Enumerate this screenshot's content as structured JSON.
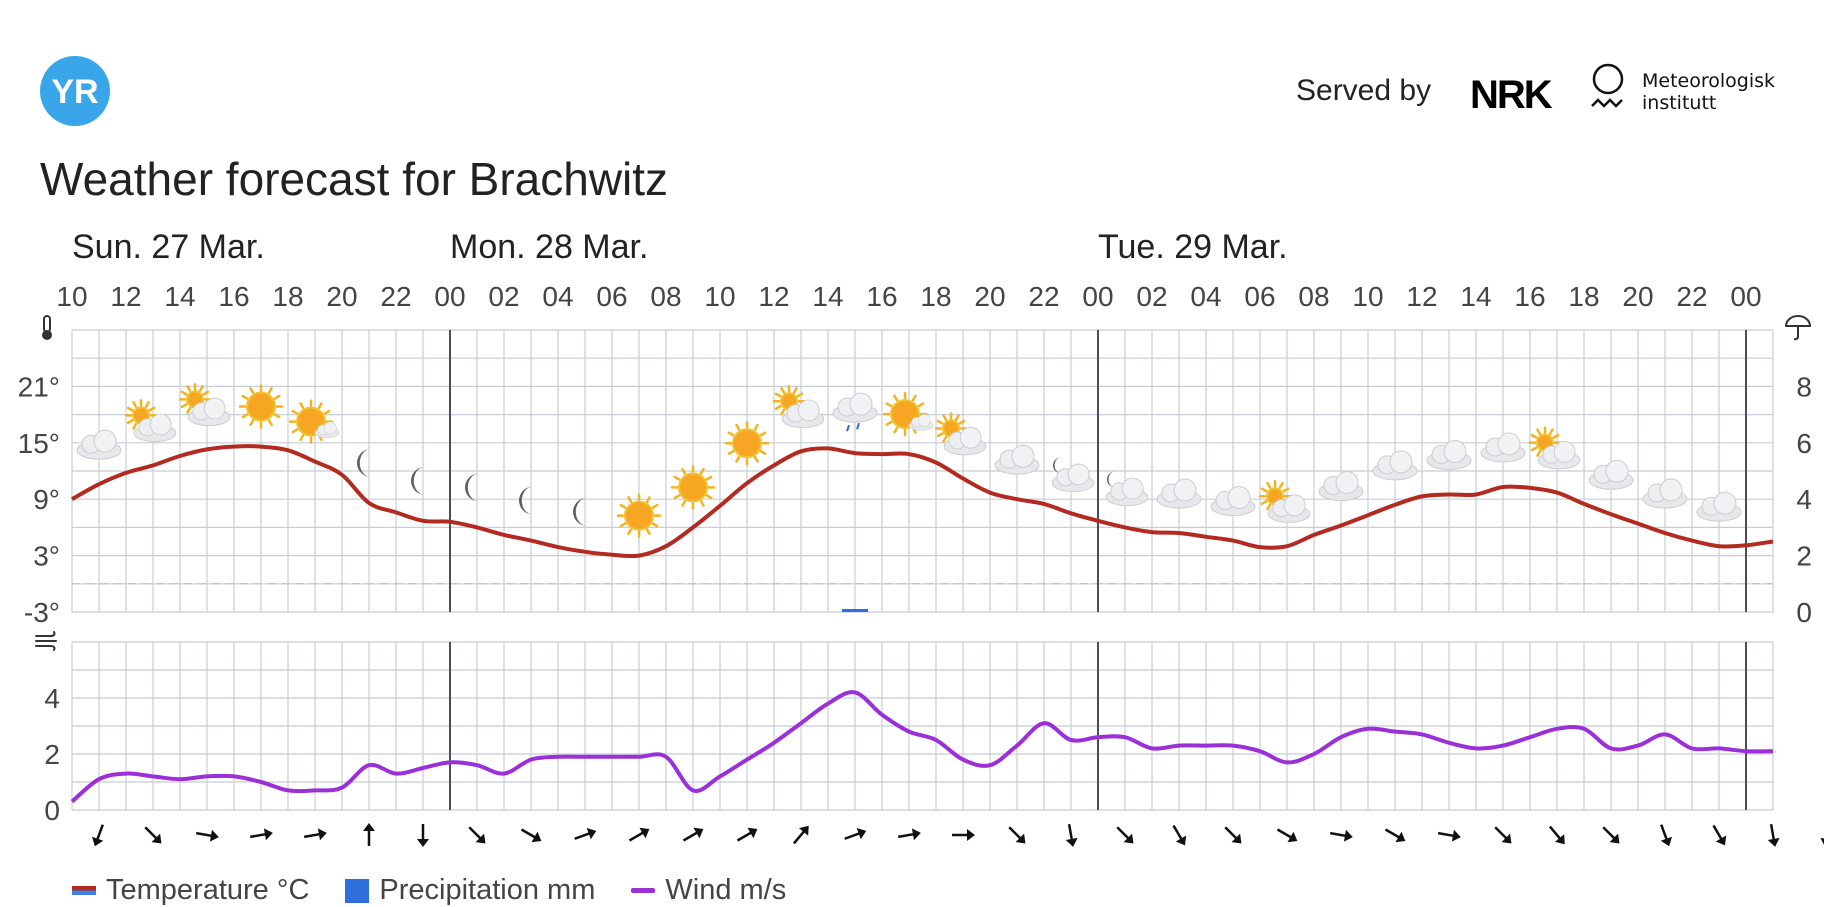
{
  "header": {
    "logo_text": "YR",
    "served_by": "Served by",
    "nrk_logo_text": "NRK",
    "met_institute_line1": "Meteorologisk",
    "met_institute_line2": "institutt"
  },
  "title": "Weather forecast for Brachwitz",
  "colors": {
    "temperature": "#b22a20",
    "temperature_below_zero": "#3f7fe6",
    "precipitation": "#2e6fdc",
    "wind": "#9b2fd8",
    "grid": "#c8ced6",
    "logo_blue": "#38a6e8"
  },
  "legend": {
    "temperature": "Temperature °C",
    "precipitation": "Precipitation mm",
    "wind": "Wind m/s"
  },
  "chart_data": {
    "type": "line",
    "hours": [
      10,
      11,
      12,
      13,
      14,
      15,
      16,
      17,
      18,
      19,
      20,
      21,
      22,
      23,
      0,
      1,
      2,
      3,
      4,
      5,
      6,
      7,
      8,
      9,
      10,
      11,
      12,
      13,
      14,
      15,
      16,
      17,
      18,
      19,
      20,
      21,
      22,
      23,
      0,
      1,
      2,
      3,
      4,
      5,
      6,
      7,
      8,
      9,
      10,
      11,
      12,
      13,
      14,
      15,
      16,
      17,
      18,
      19,
      20,
      21,
      22,
      23,
      0,
      1
    ],
    "x_tick_labels": [
      "10",
      "12",
      "14",
      "16",
      "18",
      "20",
      "22",
      "00",
      "02",
      "04",
      "06",
      "08",
      "10",
      "12",
      "14",
      "16",
      "18",
      "20",
      "22",
      "00",
      "02",
      "04",
      "06",
      "08",
      "10",
      "12",
      "14",
      "16",
      "18",
      "20",
      "22",
      "00"
    ],
    "day_labels": [
      {
        "label": "Sun. 27 Mar.",
        "start_hour_index": 0
      },
      {
        "label": "Mon. 28 Mar.",
        "start_hour_index": 14
      },
      {
        "label": "Tue. 29 Mar.",
        "start_hour_index": 38
      }
    ],
    "midnight_indices": [
      14,
      38,
      62
    ],
    "temperature": {
      "name": "Temperature °C",
      "unit": "°C",
      "ylim": [
        -3,
        27
      ],
      "y_tick_labels": [
        "21°",
        "15°",
        "9°",
        "3°",
        "-3°"
      ],
      "y_tick_values": [
        21,
        15,
        9,
        3,
        -3
      ],
      "values": [
        9.0,
        10.6,
        11.8,
        12.6,
        13.6,
        14.3,
        14.6,
        14.6,
        14.2,
        13.0,
        11.6,
        8.6,
        7.6,
        6.7,
        6.6,
        6.0,
        5.2,
        4.6,
        3.9,
        3.4,
        3.1,
        3.0,
        4.0,
        6.0,
        8.3,
        10.7,
        12.6,
        14.1,
        14.4,
        13.9,
        13.8,
        13.8,
        12.9,
        11.2,
        9.7,
        9.0,
        8.5,
        7.5,
        6.7,
        6.0,
        5.5,
        5.4,
        5.0,
        4.6,
        3.9,
        4.0,
        5.2,
        6.2,
        7.3,
        8.4,
        9.3,
        9.5,
        9.5,
        10.3,
        10.2,
        9.7,
        8.5,
        7.4,
        6.4,
        5.4,
        4.6,
        4.0,
        4.1,
        4.5
      ]
    },
    "precipitation": {
      "name": "Precipitation mm",
      "unit": "mm",
      "ylim": [
        0,
        10
      ],
      "y_tick_labels": [
        "8",
        "6",
        "4",
        "2",
        "0"
      ],
      "y_tick_values": [
        8,
        6,
        4,
        2,
        0
      ],
      "bars": [
        {
          "hour_index": 29,
          "value": 0.1
        }
      ]
    },
    "wind": {
      "name": "Wind m/s",
      "unit": "m/s",
      "ylim": [
        0,
        6
      ],
      "y_tick_labels": [
        "4",
        "2",
        "0"
      ],
      "y_tick_values": [
        4,
        2,
        0
      ],
      "values": [
        0.3,
        1.1,
        1.3,
        1.2,
        1.1,
        1.2,
        1.2,
        1.0,
        0.7,
        0.7,
        0.8,
        1.6,
        1.3,
        1.5,
        1.7,
        1.6,
        1.3,
        1.8,
        1.9,
        1.9,
        1.9,
        1.9,
        1.9,
        0.7,
        1.2,
        1.8,
        2.4,
        3.1,
        3.8,
        4.2,
        3.4,
        2.8,
        2.5,
        1.8,
        1.6,
        2.3,
        3.1,
        2.5,
        2.6,
        2.6,
        2.2,
        2.3,
        2.3,
        2.3,
        2.1,
        1.7,
        2.0,
        2.6,
        2.9,
        2.8,
        2.7,
        2.4,
        2.2,
        2.3,
        2.6,
        2.9,
        2.9,
        2.2,
        2.3,
        2.7,
        2.2,
        2.2,
        2.1,
        2.1
      ],
      "direction_arrows_deg": [
        200,
        135,
        100,
        80,
        80,
        0,
        180,
        135,
        120,
        70,
        60,
        60,
        60,
        40,
        70,
        80,
        90,
        135,
        170,
        135,
        150,
        135,
        120,
        100,
        120,
        100,
        135,
        140,
        135,
        160,
        150,
        170,
        190,
        200,
        225
      ]
    },
    "weather_symbols": [
      {
        "hour_index": 1,
        "icon": "cloud-icon"
      },
      {
        "hour_index": 3,
        "icon": "partly-cloudy-day-icon"
      },
      {
        "hour_index": 5,
        "icon": "partly-cloudy-day-icon"
      },
      {
        "hour_index": 7,
        "icon": "sun-icon"
      },
      {
        "hour_index": 9,
        "icon": "fair-day-icon"
      },
      {
        "hour_index": 11,
        "icon": "moon-icon"
      },
      {
        "hour_index": 13,
        "icon": "moon-icon"
      },
      {
        "hour_index": 15,
        "icon": "moon-icon"
      },
      {
        "hour_index": 17,
        "icon": "moon-icon"
      },
      {
        "hour_index": 19,
        "icon": "moon-icon"
      },
      {
        "hour_index": 21,
        "icon": "sun-icon"
      },
      {
        "hour_index": 23,
        "icon": "sun-icon"
      },
      {
        "hour_index": 25,
        "icon": "sun-icon"
      },
      {
        "hour_index": 27,
        "icon": "partly-cloudy-day-icon"
      },
      {
        "hour_index": 29,
        "icon": "light-rain-icon"
      },
      {
        "hour_index": 31,
        "icon": "fair-day-icon"
      },
      {
        "hour_index": 33,
        "icon": "partly-cloudy-day-icon"
      },
      {
        "hour_index": 35,
        "icon": "cloud-icon"
      },
      {
        "hour_index": 37,
        "icon": "partly-cloudy-night-icon"
      },
      {
        "hour_index": 39,
        "icon": "partly-cloudy-night-icon"
      },
      {
        "hour_index": 41,
        "icon": "cloud-icon"
      },
      {
        "hour_index": 43,
        "icon": "cloud-icon"
      },
      {
        "hour_index": 45,
        "icon": "partly-cloudy-day-icon"
      },
      {
        "hour_index": 47,
        "icon": "cloud-icon"
      },
      {
        "hour_index": 49,
        "icon": "cloud-icon"
      },
      {
        "hour_index": 51,
        "icon": "cloud-icon"
      },
      {
        "hour_index": 53,
        "icon": "cloud-icon"
      },
      {
        "hour_index": 55,
        "icon": "partly-cloudy-day-icon"
      },
      {
        "hour_index": 57,
        "icon": "cloud-icon"
      },
      {
        "hour_index": 59,
        "icon": "cloud-icon"
      },
      {
        "hour_index": 61,
        "icon": "cloud-icon"
      }
    ],
    "panel_icons": {
      "temperature": "thermometer-icon",
      "precipitation": "umbrella-icon",
      "wind": "wind-icon"
    },
    "grid": true,
    "legend_position": "bottom-left"
  }
}
